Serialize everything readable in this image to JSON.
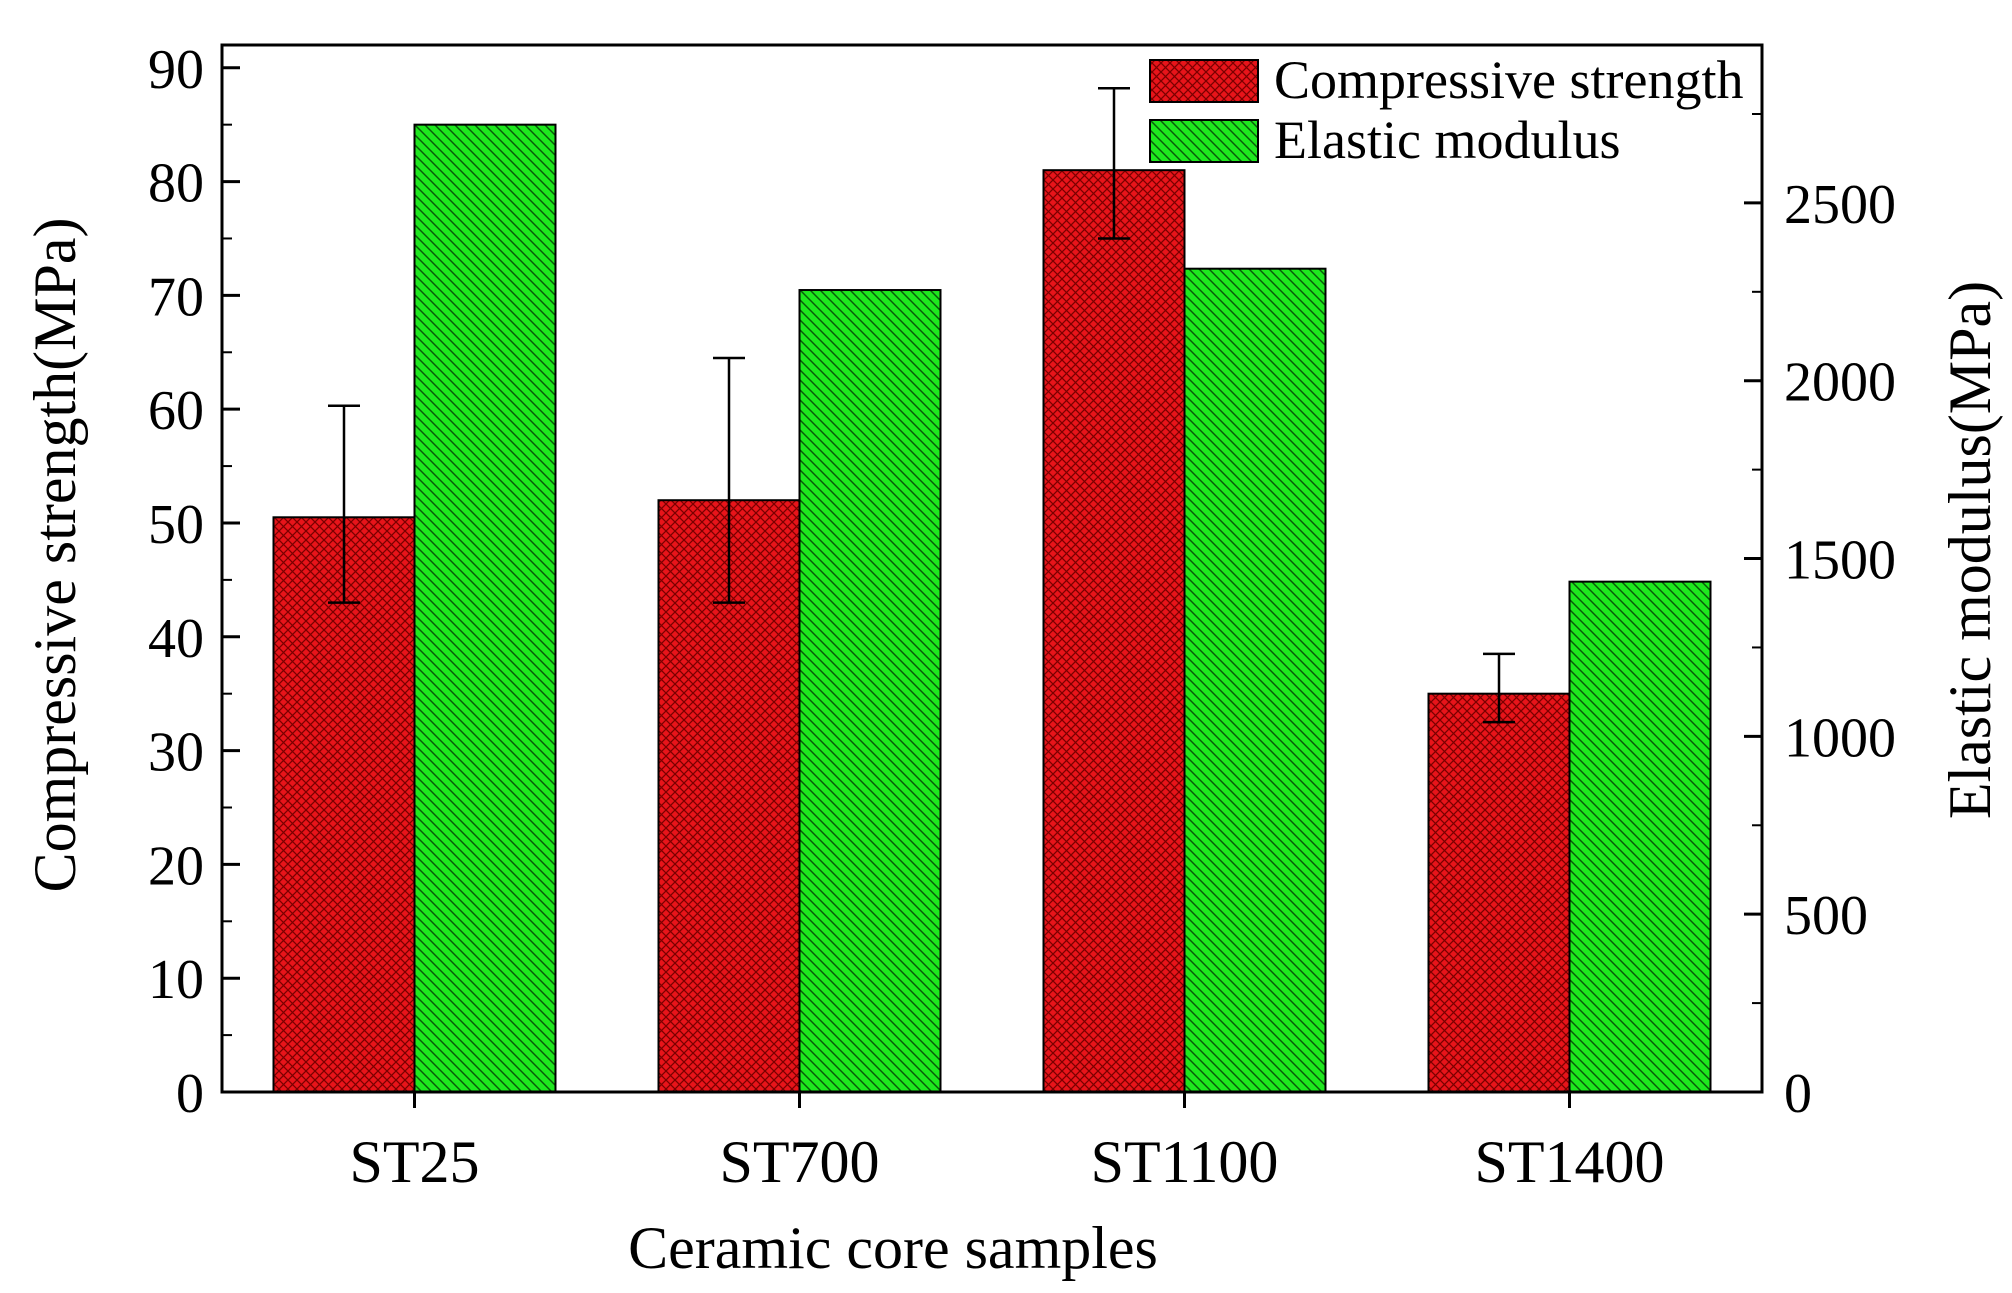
{
  "chart_data": {
    "type": "bar",
    "categories": [
      "ST25",
      "ST700",
      "ST1100",
      "ST1400"
    ],
    "series": [
      {
        "name": "Compressive strength",
        "axis": "left",
        "color": "#e8141a",
        "values": [
          50.5,
          52.0,
          81.0,
          35.0
        ],
        "error_low": [
          43.0,
          43.0,
          75.0,
          32.5
        ],
        "error_high": [
          60.3,
          64.5,
          88.2,
          38.5
        ]
      },
      {
        "name": "Elastic modulus",
        "axis": "right",
        "color": "#18e818",
        "values": [
          2720,
          2255,
          2315,
          1435
        ]
      }
    ],
    "xlabel": "Ceramic core samples",
    "ylabel_left": "Compressive strength(MPa)",
    "ylabel_right": "Elastic modulus(MPa)",
    "ylim_left": [
      0,
      92
    ],
    "ylim_right": [
      0,
      2944
    ],
    "yticks_left": [
      "0",
      "10",
      "20",
      "30",
      "40",
      "50",
      "60",
      "70",
      "80",
      "90"
    ],
    "yticks_right": [
      "0",
      "500",
      "1000",
      "1500",
      "2000",
      "2500"
    ],
    "legend_position": "top-right",
    "grid": false
  }
}
